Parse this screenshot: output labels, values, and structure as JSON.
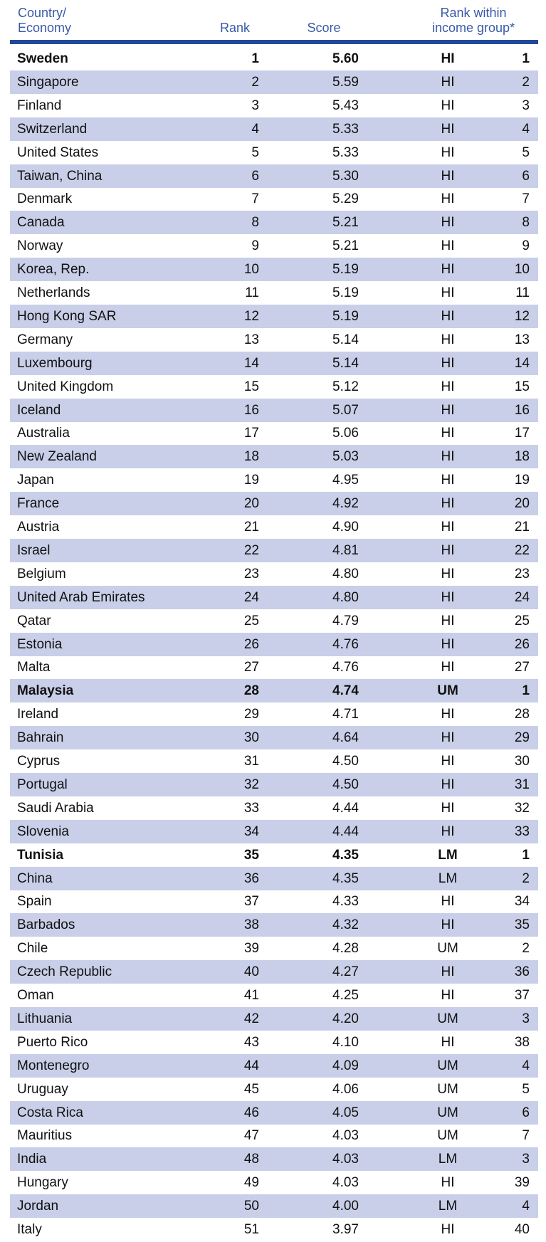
{
  "header": {
    "country": [
      "Country/",
      "Economy"
    ],
    "rank": "Rank",
    "score": "Score",
    "group": [
      "Rank within",
      "income group*"
    ]
  },
  "table": {
    "rows": [
      [
        "Sweden",
        "1",
        "5.60",
        "HI",
        "1"
      ],
      [
        "Singapore",
        "2",
        "5.59",
        "HI",
        "2"
      ],
      [
        "Finland",
        "3",
        "5.43",
        "HI",
        "3"
      ],
      [
        "Switzerland",
        "4",
        "5.33",
        "HI",
        "4"
      ],
      [
        "United States",
        "5",
        "5.33",
        "HI",
        "5"
      ],
      [
        "Taiwan, China",
        "6",
        "5.30",
        "HI",
        "6"
      ],
      [
        "Denmark",
        "7",
        "5.29",
        "HI",
        "7"
      ],
      [
        "Canada",
        "8",
        "5.21",
        "HI",
        "8"
      ],
      [
        "Norway",
        "9",
        "5.21",
        "HI",
        "9"
      ],
      [
        "Korea, Rep.",
        "10",
        "5.19",
        "HI",
        "10"
      ],
      [
        "Netherlands",
        "11",
        "5.19",
        "HI",
        "11"
      ],
      [
        "Hong Kong SAR",
        "12",
        "5.19",
        "HI",
        "12"
      ],
      [
        "Germany",
        "13",
        "5.14",
        "HI",
        "13"
      ],
      [
        "Luxembourg",
        "14",
        "5.14",
        "HI",
        "14"
      ],
      [
        "United Kingdom",
        "15",
        "5.12",
        "HI",
        "15"
      ],
      [
        "Iceland",
        "16",
        "5.07",
        "HI",
        "16"
      ],
      [
        "Australia",
        "17",
        "5.06",
        "HI",
        "17"
      ],
      [
        "New Zealand",
        "18",
        "5.03",
        "HI",
        "18"
      ],
      [
        "Japan",
        "19",
        "4.95",
        "HI",
        "19"
      ],
      [
        "France",
        "20",
        "4.92",
        "HI",
        "20"
      ],
      [
        "Austria",
        "21",
        "4.90",
        "HI",
        "21"
      ],
      [
        "Israel",
        "22",
        "4.81",
        "HI",
        "22"
      ],
      [
        "Belgium",
        "23",
        "4.80",
        "HI",
        "23"
      ],
      [
        "United Arab Emirates",
        "24",
        "4.80",
        "HI",
        "24"
      ],
      [
        "Qatar",
        "25",
        "4.79",
        "HI",
        "25"
      ],
      [
        "Estonia",
        "26",
        "4.76",
        "HI",
        "26"
      ],
      [
        "Malta",
        "27",
        "4.76",
        "HI",
        "27"
      ],
      [
        "Malaysia",
        "28",
        "4.74",
        "UM",
        "1"
      ],
      [
        "Ireland",
        "29",
        "4.71",
        "HI",
        "28"
      ],
      [
        "Bahrain",
        "30",
        "4.64",
        "HI",
        "29"
      ],
      [
        "Cyprus",
        "31",
        "4.50",
        "HI",
        "30"
      ],
      [
        "Portugal",
        "32",
        "4.50",
        "HI",
        "31"
      ],
      [
        "Saudi Arabia",
        "33",
        "4.44",
        "HI",
        "32"
      ],
      [
        "Slovenia",
        "34",
        "4.44",
        "HI",
        "33"
      ],
      [
        "Tunisia",
        "35",
        "4.35",
        "LM",
        "1"
      ],
      [
        "China",
        "36",
        "4.35",
        "LM",
        "2"
      ],
      [
        "Spain",
        "37",
        "4.33",
        "HI",
        "34"
      ],
      [
        "Barbados",
        "38",
        "4.32",
        "HI",
        "35"
      ],
      [
        "Chile",
        "39",
        "4.28",
        "UM",
        "2"
      ],
      [
        "Czech Republic",
        "40",
        "4.27",
        "HI",
        "36"
      ],
      [
        "Oman",
        "41",
        "4.25",
        "HI",
        "37"
      ],
      [
        "Lithuania",
        "42",
        "4.20",
        "UM",
        "3"
      ],
      [
        "Puerto Rico",
        "43",
        "4.10",
        "HI",
        "38"
      ],
      [
        "Montenegro",
        "44",
        "4.09",
        "UM",
        "4"
      ],
      [
        "Uruguay",
        "45",
        "4.06",
        "UM",
        "5"
      ],
      [
        "Costa Rica",
        "46",
        "4.05",
        "UM",
        "6"
      ],
      [
        "Mauritius",
        "47",
        "4.03",
        "UM",
        "7"
      ],
      [
        "India",
        "48",
        "4.03",
        "LM",
        "3"
      ],
      [
        "Hungary",
        "49",
        "4.03",
        "HI",
        "39"
      ],
      [
        "Jordan",
        "50",
        "4.00",
        "LM",
        "4"
      ],
      [
        "Italy",
        "51",
        "3.97",
        "HI",
        "40"
      ]
    ]
  }
}
